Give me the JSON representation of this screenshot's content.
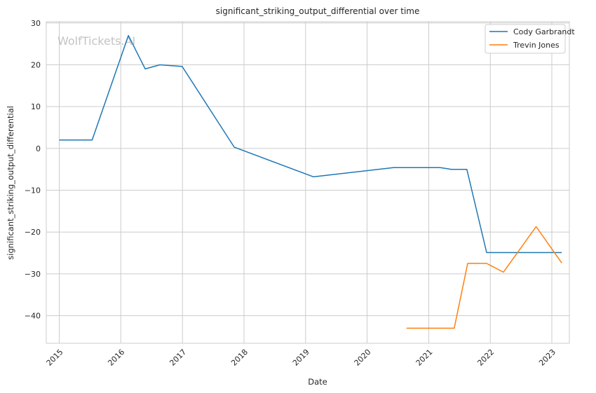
{
  "chart_data": {
    "type": "line",
    "title": "significant_striking_output_differential over time",
    "xlabel": "Date",
    "ylabel": "significant_striking_output_differential",
    "watermark": "WolfTickets.AI",
    "x_ticks": [
      "2015",
      "2016",
      "2017",
      "2018",
      "2019",
      "2020",
      "2021",
      "2022",
      "2023"
    ],
    "y_ticks": [
      30,
      20,
      10,
      0,
      -10,
      -20,
      -30,
      -40
    ],
    "xlim": [
      "2014-10-16",
      "2023-04-15"
    ],
    "ylim": [
      -46.6,
      30.3
    ],
    "grid": true,
    "legend_position": "top-right",
    "series": [
      {
        "name": "Cody Garbrandt",
        "color": "#1f77b4",
        "points": [
          [
            "2015-01-01",
            2.0
          ],
          [
            "2015-07-15",
            2.0
          ],
          [
            "2016-02-15",
            27.0
          ],
          [
            "2016-05-25",
            19.0
          ],
          [
            "2016-08-20",
            20.0
          ],
          [
            "2016-12-30",
            19.6
          ],
          [
            "2017-11-04",
            0.3
          ],
          [
            "2019-02-17",
            -6.8
          ],
          [
            "2020-06-06",
            -4.6
          ],
          [
            "2021-03-10",
            -4.6
          ],
          [
            "2021-05-15",
            -5.0
          ],
          [
            "2021-08-15",
            -5.0
          ],
          [
            "2021-12-10",
            -24.9
          ],
          [
            "2023-03-01",
            -24.9
          ]
        ]
      },
      {
        "name": "Trevin Jones",
        "color": "#ff7f0e",
        "points": [
          [
            "2020-08-22",
            -43.0
          ],
          [
            "2021-06-01",
            -43.0
          ],
          [
            "2021-08-20",
            -27.5
          ],
          [
            "2021-12-10",
            -27.5
          ],
          [
            "2022-03-20",
            -29.6
          ],
          [
            "2022-09-30",
            -18.7
          ],
          [
            "2023-03-01",
            -27.4
          ]
        ]
      }
    ]
  }
}
